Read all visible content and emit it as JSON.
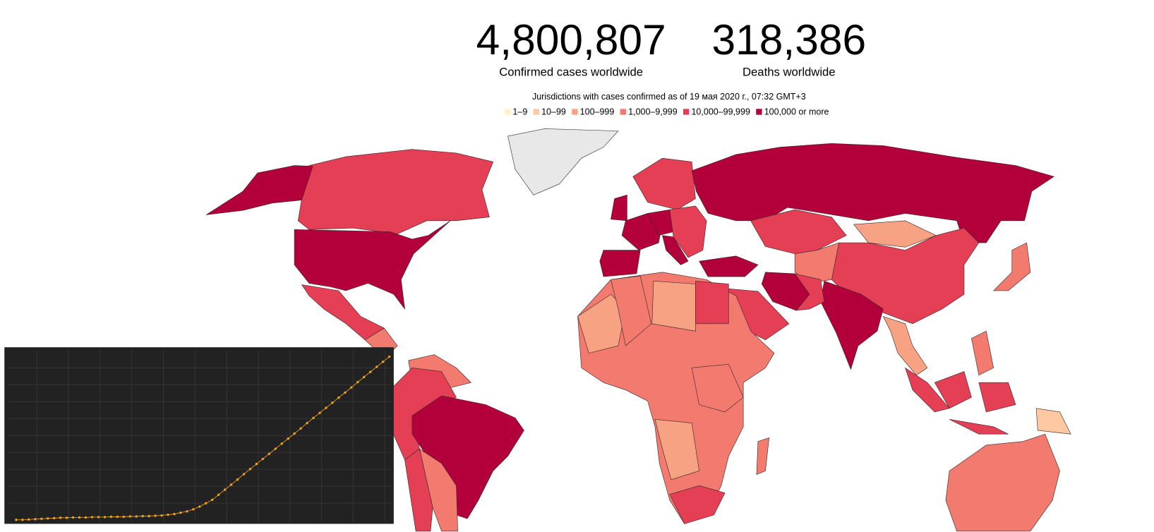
{
  "header": {
    "stats": [
      {
        "value": "4,800,807",
        "label": "Confirmed cases worldwide"
      },
      {
        "value": "318,386",
        "label": "Deaths worldwide"
      }
    ]
  },
  "legend": {
    "title": "Jurisdictions with cases confirmed as of 19 мая 2020 г., 07:32 GMT+3",
    "items": [
      {
        "label": "1–9",
        "color": "#fff3c4"
      },
      {
        "label": "10–99",
        "color": "#fdc8a2"
      },
      {
        "label": "100–999",
        "color": "#f8a284"
      },
      {
        "label": "1,000–9,999",
        "color": "#f37a6e"
      },
      {
        "label": "10,000–99,999",
        "color": "#e53f56"
      },
      {
        "label": "100,000 or more",
        "color": "#b3003a"
      }
    ]
  },
  "chart_data": {
    "type": "line",
    "series": [
      {
        "color": "#f5a31a",
        "values": [
          0.01,
          0.01,
          0.02,
          0.03,
          0.04,
          0.05,
          0.06,
          0.07,
          0.07,
          0.08,
          0.08,
          0.08,
          0.09,
          0.09,
          0.09,
          0.1,
          0.1,
          0.1,
          0.11,
          0.11,
          0.12,
          0.12,
          0.13,
          0.14,
          0.16,
          0.18,
          0.22,
          0.26,
          0.32,
          0.4,
          0.5,
          0.6,
          0.75,
          0.9,
          1.05,
          1.2,
          1.36,
          1.51,
          1.66,
          1.81,
          1.96,
          2.11,
          2.26,
          2.41,
          2.56,
          2.71,
          2.87,
          3.02,
          3.17,
          3.32,
          3.47,
          3.62,
          3.77,
          3.92,
          4.08,
          4.23,
          4.38,
          4.53,
          4.68,
          4.83
        ]
      }
    ],
    "ylim": [
      0,
      5
    ]
  }
}
